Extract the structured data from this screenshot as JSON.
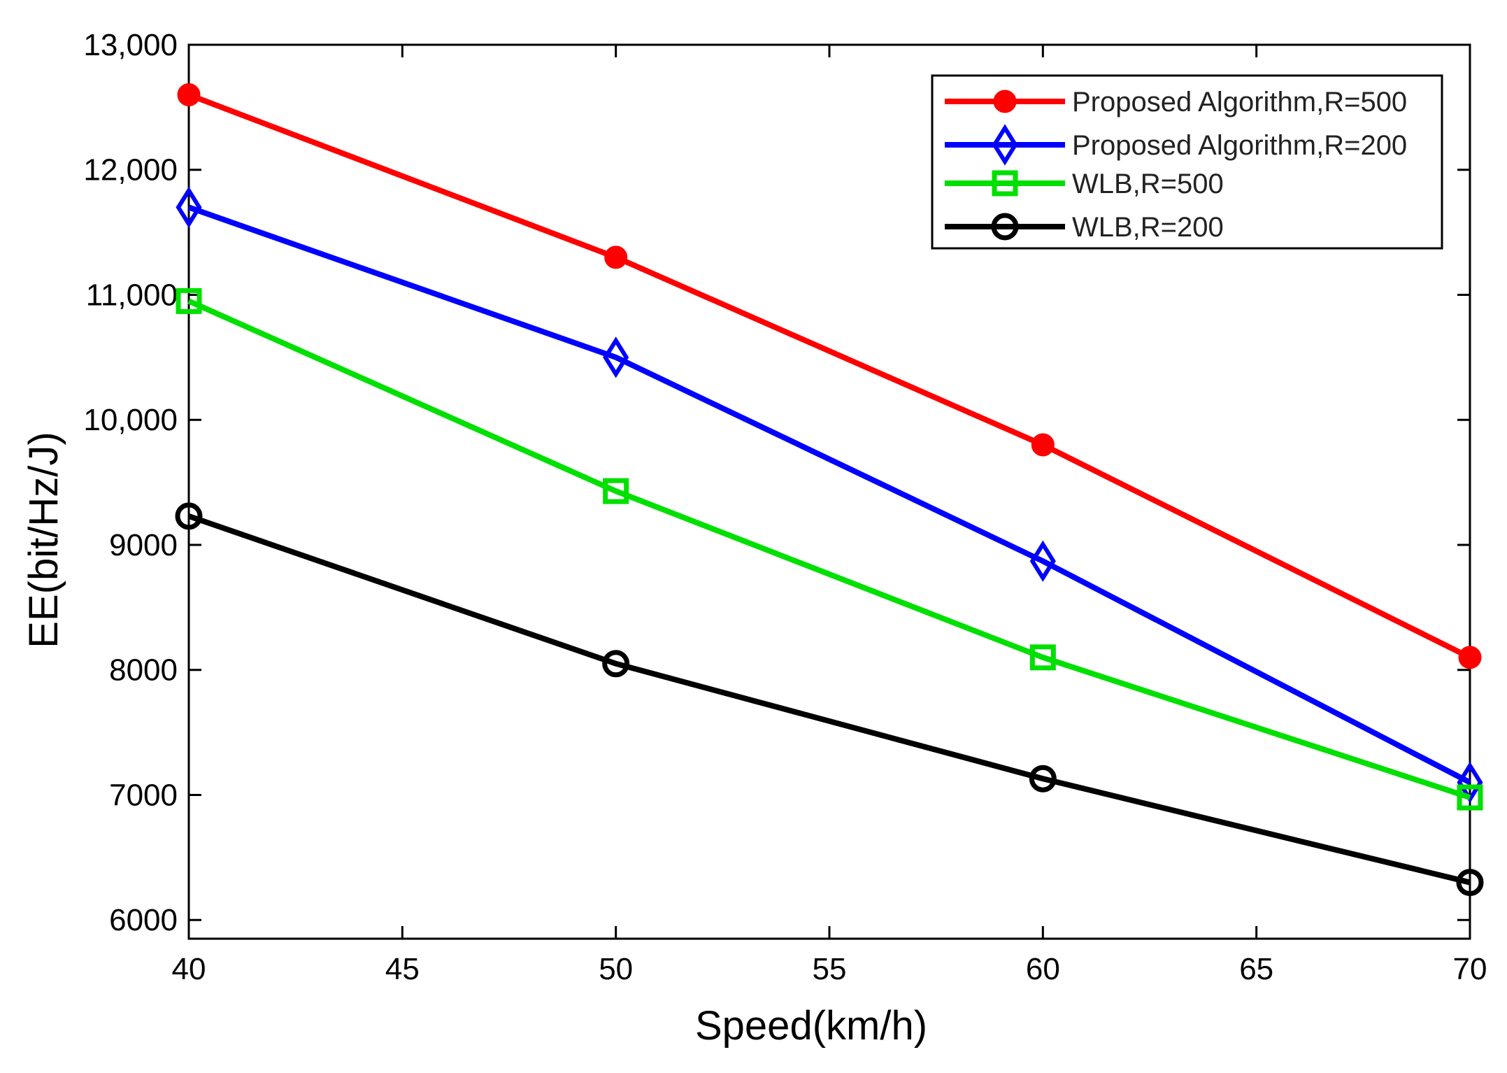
{
  "chart_data": {
    "type": "line",
    "title": "",
    "xlabel": "Speed(km/h)",
    "ylabel": "EE(bit/Hz/J)",
    "x": [
      40,
      50,
      60,
      70
    ],
    "xlim": [
      40,
      70
    ],
    "ylim": [
      5850,
      13000
    ],
    "xticks": [
      40,
      45,
      50,
      55,
      60,
      65,
      70
    ],
    "xtick_labels": [
      "40",
      "45",
      "50",
      "55",
      "60",
      "65",
      "70"
    ],
    "yticks": [
      6000,
      7000,
      8000,
      9000,
      10000,
      11000,
      12000,
      13000
    ],
    "ytick_labels": [
      "6000",
      "7000",
      "8000",
      "9000",
      "10,000",
      "11,000",
      "12,000",
      "13,000"
    ],
    "grid": false,
    "legend_position": "top-right",
    "series": [
      {
        "name": "Proposed Algorithm,R=500",
        "color": "#ff0000",
        "marker": "filled-circle",
        "values": [
          12600,
          11300,
          9800,
          8100
        ]
      },
      {
        "name": "Proposed Algorithm,R=200",
        "color": "#0000ff",
        "marker": "diamond",
        "values": [
          11700,
          10500,
          8870,
          7100
        ]
      },
      {
        "name": "WLB,R=500",
        "color": "#00e000",
        "marker": "square",
        "values": [
          10950,
          9430,
          8100,
          6980
        ]
      },
      {
        "name": "WLB,R=200",
        "color": "#000000",
        "marker": "open-circle",
        "values": [
          9230,
          8050,
          7130,
          6300
        ]
      }
    ]
  }
}
